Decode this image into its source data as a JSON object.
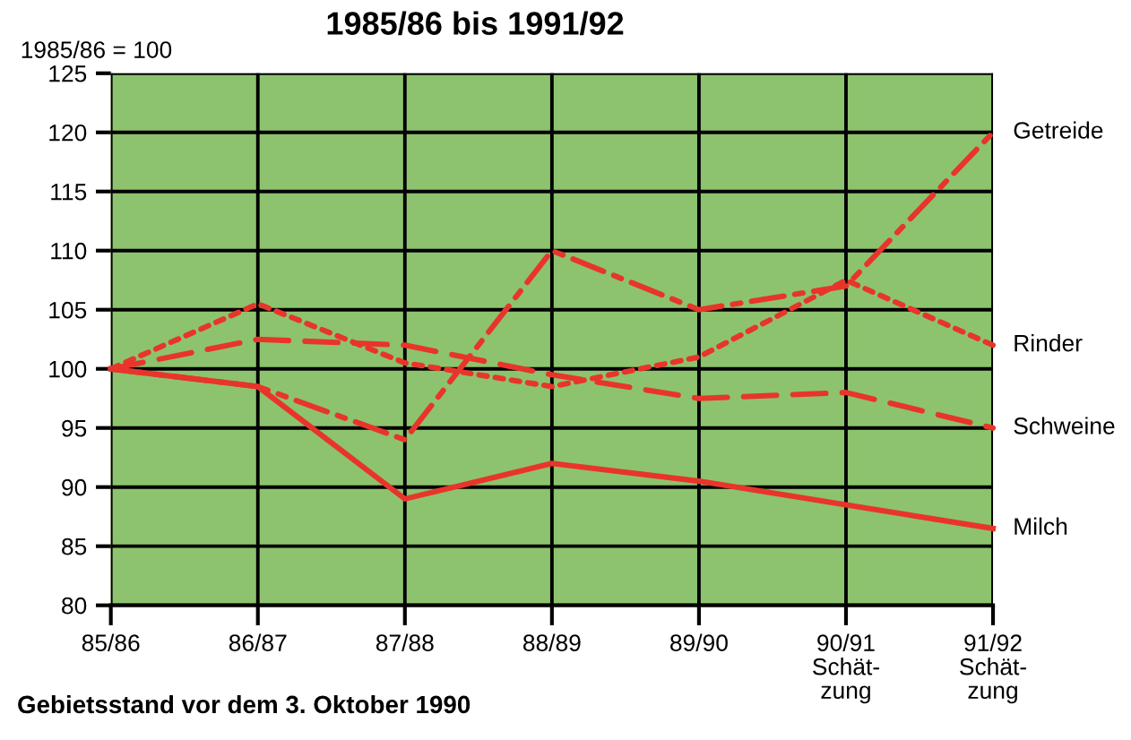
{
  "chart_data": {
    "type": "line",
    "title": "1985/86 bis 1991/92",
    "ylabel": "1985/86 = 100",
    "categories": [
      "85/86",
      "86/87",
      "87/88",
      "88/89",
      "89/90",
      "90/91\nSchät-\nzung",
      "91/92\nSchät-\nzung"
    ],
    "series": [
      {
        "name": "Getreide",
        "color": "#e8352b",
        "line_style": "dashdot",
        "values": [
          100,
          98.5,
          94,
          110,
          105,
          107,
          120
        ]
      },
      {
        "name": "Rinder",
        "color": "#e8352b",
        "line_style": "dotted",
        "values": [
          100,
          105.5,
          100.5,
          98.5,
          101,
          107.5,
          102
        ]
      },
      {
        "name": "Schweine",
        "color": "#e8352b",
        "line_style": "dashed",
        "values": [
          100,
          102.5,
          102,
          99.5,
          97.5,
          98,
          95
        ]
      },
      {
        "name": "Milch",
        "color": "#e8352b",
        "line_style": "solid",
        "values": [
          100,
          98.5,
          89,
          92,
          90.5,
          88.5,
          86.5
        ]
      }
    ],
    "ylim": [
      80,
      125
    ],
    "yticks": [
      80,
      85,
      90,
      95,
      100,
      105,
      110,
      115,
      120,
      125
    ],
    "grid": true,
    "marker": "none",
    "legend": false,
    "annotations": [
      "Gebietsstand vor dem 3. Oktober 1990"
    ]
  }
}
